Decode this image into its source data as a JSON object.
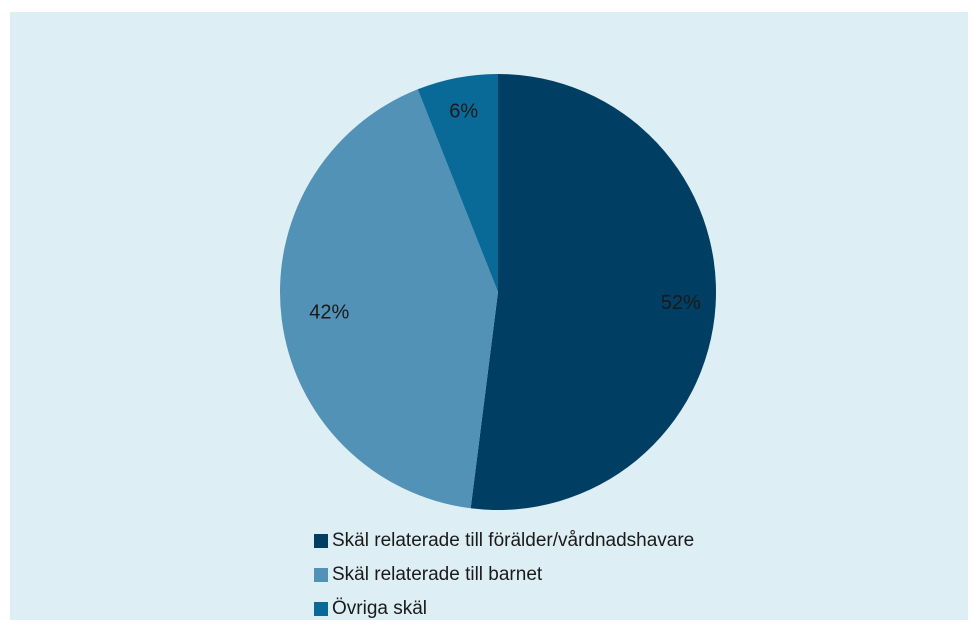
{
  "chart_data": {
    "type": "pie",
    "categories": [
      "Skäl relaterade till förälder/vårdnadshavare",
      "Skäl relaterade till barnet",
      "Övriga skäl"
    ],
    "values": [
      52,
      42,
      6
    ],
    "value_labels": [
      "52%",
      "42%",
      "6%"
    ],
    "colors": [
      "#003f63",
      "#5192b6",
      "#0a6a97"
    ],
    "legend_position": "bottom",
    "title": ""
  }
}
